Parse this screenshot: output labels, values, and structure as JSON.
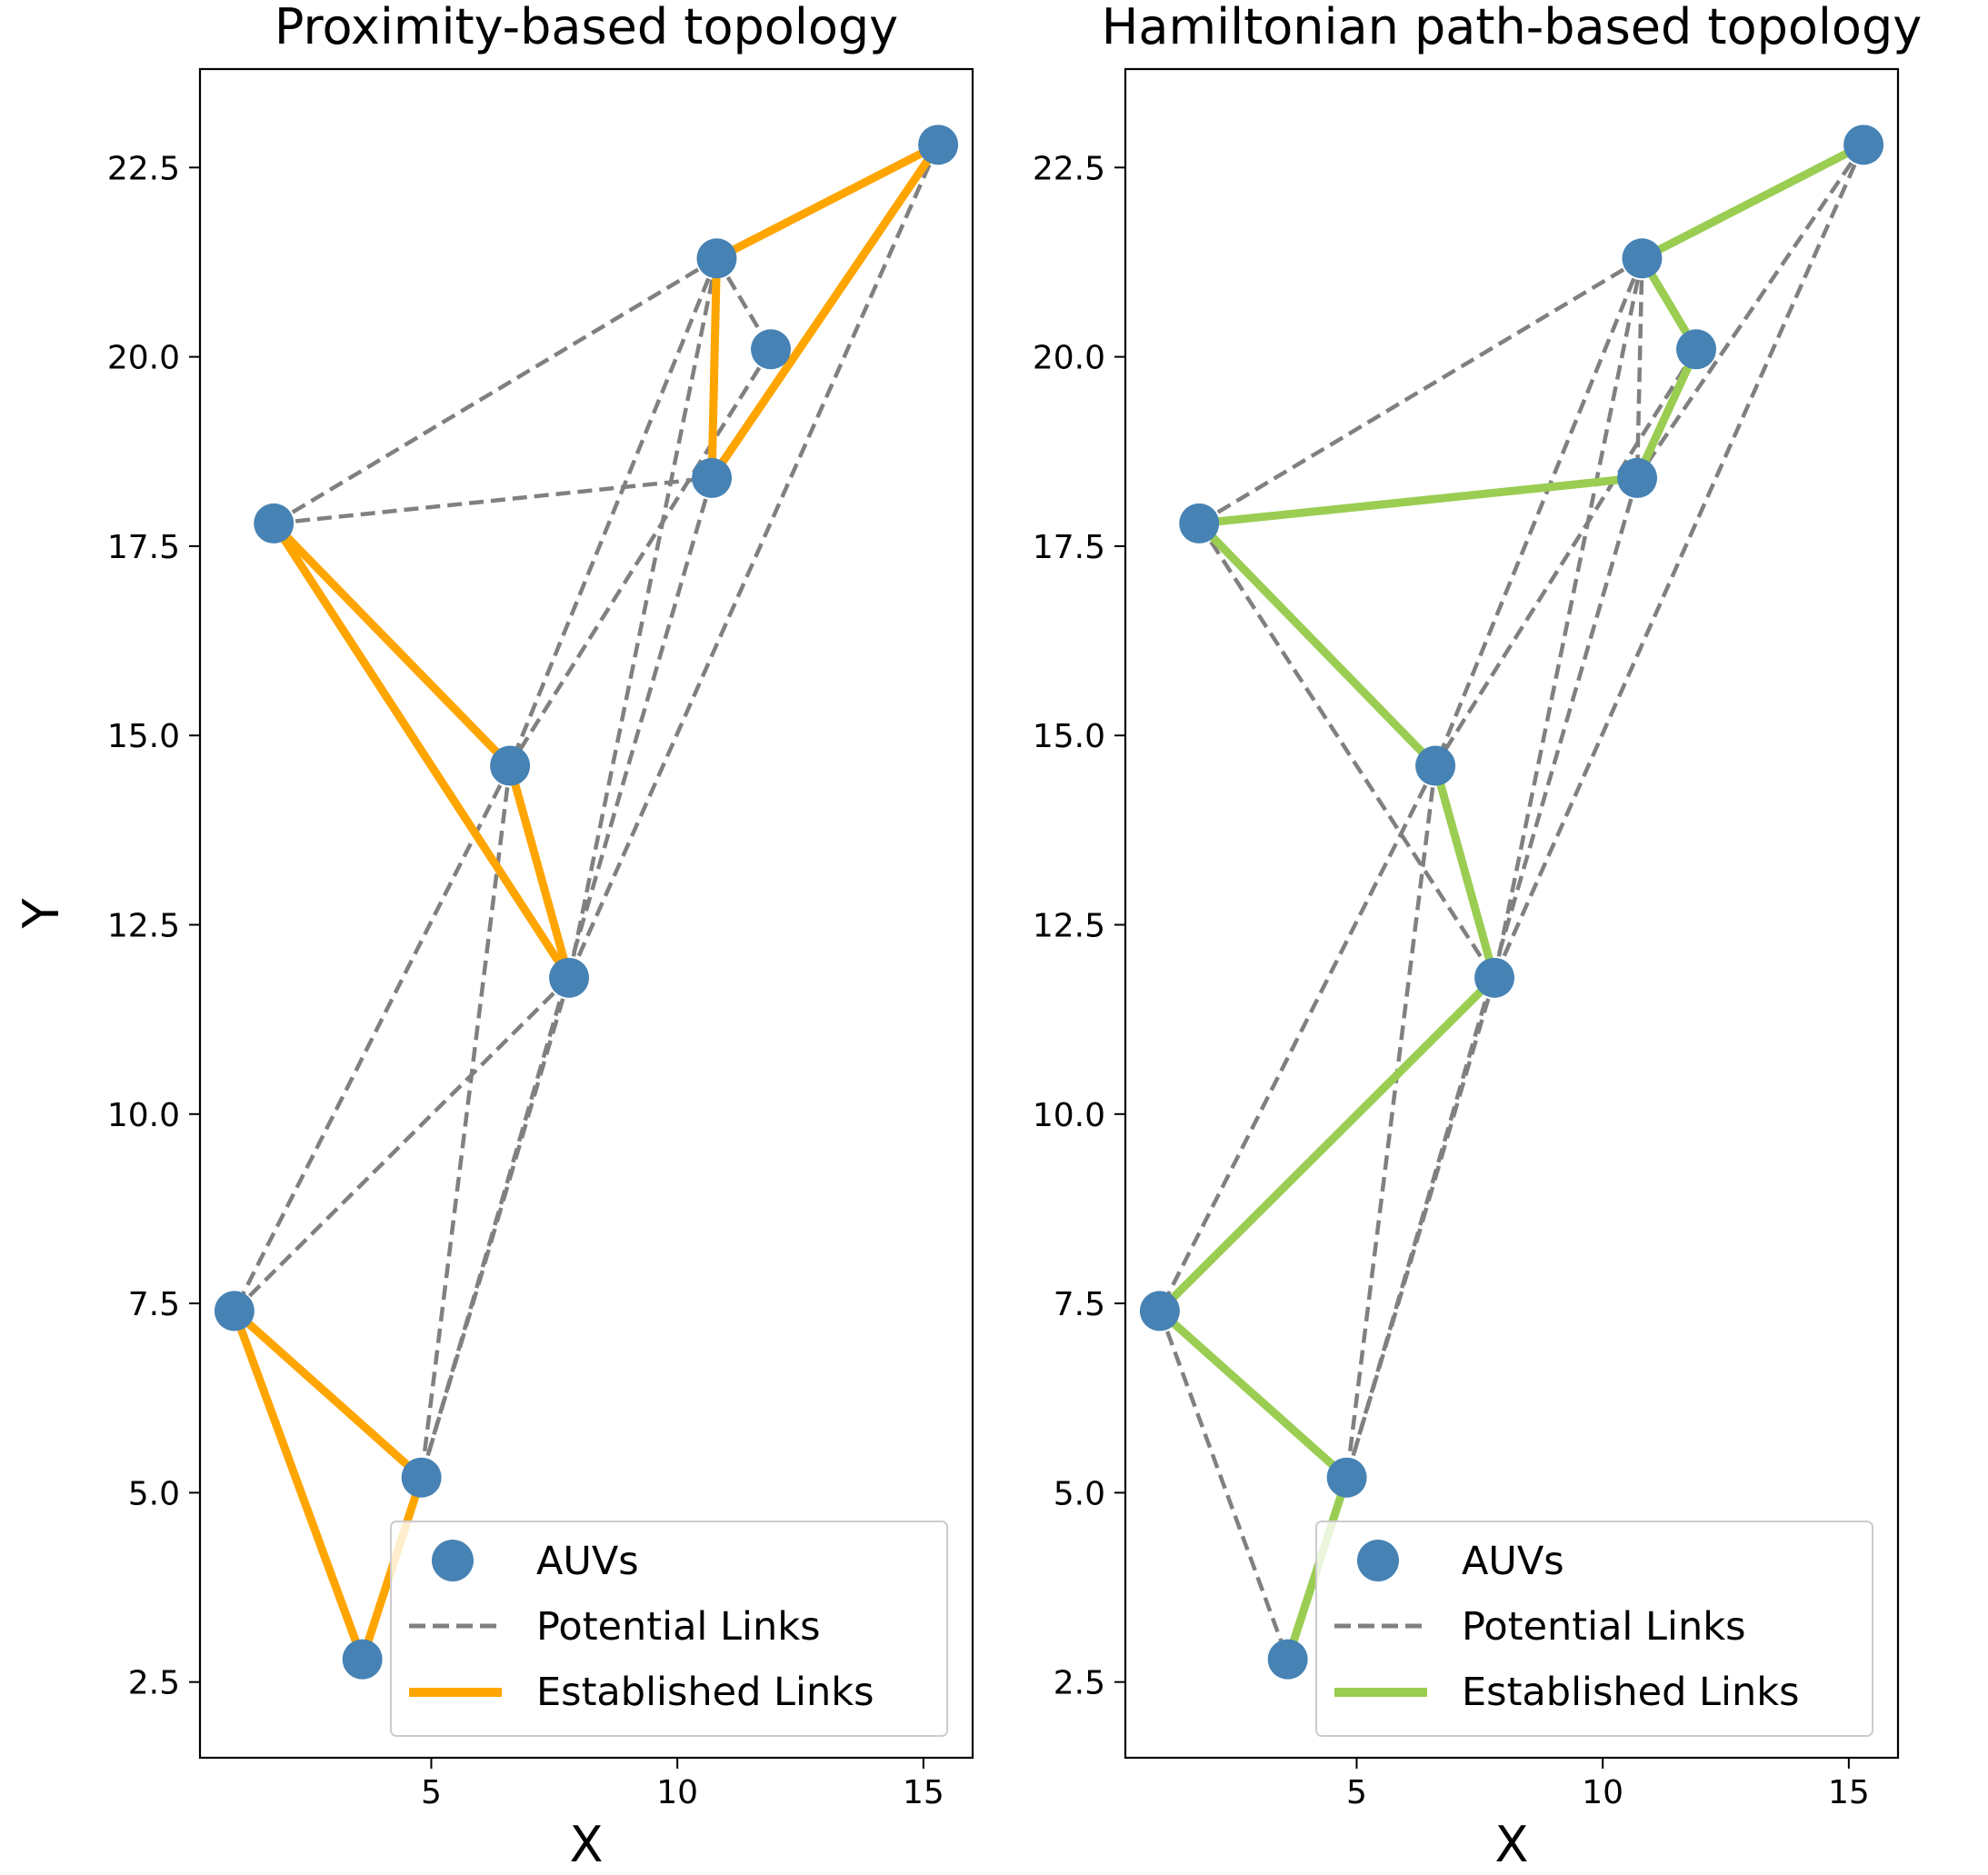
{
  "figure": {
    "xlabel": "X",
    "ylabel": "Y"
  },
  "chart_data": [
    {
      "type": "scatter",
      "title": "Proximity-based topology",
      "xlabel": "X",
      "ylabel": "Y",
      "xlim": [
        0.3,
        16.0
      ],
      "ylim": [
        1.5,
        23.8
      ],
      "xticks": [
        5,
        10,
        15
      ],
      "yticks": [
        2.5,
        5.0,
        7.5,
        10.0,
        12.5,
        15.0,
        17.5,
        20.0,
        22.5
      ],
      "xtick_labels": [
        "5",
        "10",
        "15"
      ],
      "ytick_labels": [
        "2.5",
        "5.0",
        "7.5",
        "10.0",
        "12.5",
        "15.0",
        "17.5",
        "20.0",
        "22.5"
      ],
      "grid": false,
      "legend_position": "lower-right",
      "series": [
        {
          "name": "AUVs",
          "kind": "scatter",
          "color": "#4682b4",
          "points": [
            {
              "x": 15.3,
              "y": 22.8
            },
            {
              "x": 10.8,
              "y": 21.3
            },
            {
              "x": 11.9,
              "y": 20.1
            },
            {
              "x": 10.7,
              "y": 18.4
            },
            {
              "x": 1.8,
              "y": 17.8
            },
            {
              "x": 6.6,
              "y": 14.6
            },
            {
              "x": 7.8,
              "y": 11.8
            },
            {
              "x": 1.0,
              "y": 7.4
            },
            {
              "x": 4.8,
              "y": 5.2
            },
            {
              "x": 3.6,
              "y": 2.8
            }
          ]
        },
        {
          "name": "Potential Links",
          "kind": "dashed",
          "color": "#808080",
          "segments": [
            [
              [
                1.8,
                17.8
              ],
              [
                10.8,
                21.3
              ]
            ],
            [
              [
                1.8,
                17.8
              ],
              [
                10.7,
                18.4
              ]
            ],
            [
              [
                10.8,
                21.3
              ],
              [
                11.9,
                20.1
              ]
            ],
            [
              [
                11.9,
                20.1
              ],
              [
                6.6,
                14.6
              ]
            ],
            [
              [
                15.3,
                22.8
              ],
              [
                10.7,
                18.4
              ]
            ],
            [
              [
                15.3,
                22.8
              ],
              [
                7.8,
                11.8
              ]
            ],
            [
              [
                10.8,
                21.3
              ],
              [
                6.6,
                14.6
              ]
            ],
            [
              [
                10.8,
                21.3
              ],
              [
                7.8,
                11.8
              ]
            ],
            [
              [
                10.7,
                18.4
              ],
              [
                4.8,
                5.2
              ]
            ],
            [
              [
                6.6,
                14.6
              ],
              [
                1.0,
                7.4
              ]
            ],
            [
              [
                6.6,
                14.6
              ],
              [
                4.8,
                5.2
              ]
            ],
            [
              [
                7.8,
                11.8
              ],
              [
                1.0,
                7.4
              ]
            ],
            [
              [
                7.8,
                11.8
              ],
              [
                4.8,
                5.2
              ]
            ]
          ]
        },
        {
          "name": "Established Links",
          "kind": "solid",
          "color": "#ffa500",
          "segments": [
            [
              [
                10.8,
                21.3
              ],
              [
                15.3,
                22.8
              ]
            ],
            [
              [
                15.3,
                22.8
              ],
              [
                10.7,
                18.4
              ]
            ],
            [
              [
                10.7,
                18.4
              ],
              [
                10.8,
                21.3
              ]
            ],
            [
              [
                1.8,
                17.8
              ],
              [
                6.6,
                14.6
              ]
            ],
            [
              [
                6.6,
                14.6
              ],
              [
                7.8,
                11.8
              ]
            ],
            [
              [
                7.8,
                11.8
              ],
              [
                1.8,
                17.8
              ]
            ],
            [
              [
                1.0,
                7.4
              ],
              [
                4.8,
                5.2
              ]
            ],
            [
              [
                4.8,
                5.2
              ],
              [
                3.6,
                2.8
              ]
            ],
            [
              [
                3.6,
                2.8
              ],
              [
                1.0,
                7.4
              ]
            ]
          ]
        }
      ]
    },
    {
      "type": "scatter",
      "title": "Hamiltonian path-based topology",
      "xlabel": "X",
      "ylabel": "",
      "xlim": [
        0.3,
        16.0
      ],
      "ylim": [
        1.5,
        23.8
      ],
      "xticks": [
        5,
        10,
        15
      ],
      "yticks": [
        2.5,
        5.0,
        7.5,
        10.0,
        12.5,
        15.0,
        17.5,
        20.0,
        22.5
      ],
      "xtick_labels": [
        "5",
        "10",
        "15"
      ],
      "ytick_labels": [
        "2.5",
        "5.0",
        "7.5",
        "10.0",
        "12.5",
        "15.0",
        "17.5",
        "20.0",
        "22.5"
      ],
      "grid": false,
      "legend_position": "lower-right",
      "series": [
        {
          "name": "AUVs",
          "kind": "scatter",
          "color": "#4682b4",
          "points": [
            {
              "x": 15.3,
              "y": 22.8
            },
            {
              "x": 10.8,
              "y": 21.3
            },
            {
              "x": 11.9,
              "y": 20.1
            },
            {
              "x": 10.7,
              "y": 18.4
            },
            {
              "x": 1.8,
              "y": 17.8
            },
            {
              "x": 6.6,
              "y": 14.6
            },
            {
              "x": 7.8,
              "y": 11.8
            },
            {
              "x": 1.0,
              "y": 7.4
            },
            {
              "x": 4.8,
              "y": 5.2
            },
            {
              "x": 3.6,
              "y": 2.8
            }
          ]
        },
        {
          "name": "Potential Links",
          "kind": "dashed",
          "color": "#808080",
          "segments": [
            [
              [
                1.8,
                17.8
              ],
              [
                10.8,
                21.3
              ]
            ],
            [
              [
                1.8,
                17.8
              ],
              [
                7.8,
                11.8
              ]
            ],
            [
              [
                10.8,
                21.3
              ],
              [
                10.7,
                18.4
              ]
            ],
            [
              [
                15.3,
                22.8
              ],
              [
                10.7,
                18.4
              ]
            ],
            [
              [
                15.3,
                22.8
              ],
              [
                7.8,
                11.8
              ]
            ],
            [
              [
                10.8,
                21.3
              ],
              [
                6.6,
                14.6
              ]
            ],
            [
              [
                10.8,
                21.3
              ],
              [
                7.8,
                11.8
              ]
            ],
            [
              [
                11.9,
                20.1
              ],
              [
                6.6,
                14.6
              ]
            ],
            [
              [
                10.7,
                18.4
              ],
              [
                4.8,
                5.2
              ]
            ],
            [
              [
                6.6,
                14.6
              ],
              [
                1.0,
                7.4
              ]
            ],
            [
              [
                6.6,
                14.6
              ],
              [
                4.8,
                5.2
              ]
            ],
            [
              [
                7.8,
                11.8
              ],
              [
                4.8,
                5.2
              ]
            ],
            [
              [
                1.0,
                7.4
              ],
              [
                3.6,
                2.8
              ]
            ]
          ]
        },
        {
          "name": "Established Links",
          "kind": "solid",
          "color": "#9acd52",
          "segments": [
            [
              [
                15.3,
                22.8
              ],
              [
                10.8,
                21.3
              ]
            ],
            [
              [
                10.8,
                21.3
              ],
              [
                11.9,
                20.1
              ]
            ],
            [
              [
                11.9,
                20.1
              ],
              [
                10.7,
                18.4
              ]
            ],
            [
              [
                10.7,
                18.4
              ],
              [
                1.8,
                17.8
              ]
            ],
            [
              [
                1.8,
                17.8
              ],
              [
                6.6,
                14.6
              ]
            ],
            [
              [
                6.6,
                14.6
              ],
              [
                7.8,
                11.8
              ]
            ],
            [
              [
                7.8,
                11.8
              ],
              [
                1.0,
                7.4
              ]
            ],
            [
              [
                1.0,
                7.4
              ],
              [
                4.8,
                5.2
              ]
            ],
            [
              [
                4.8,
                5.2
              ],
              [
                3.6,
                2.8
              ]
            ]
          ]
        }
      ]
    }
  ]
}
